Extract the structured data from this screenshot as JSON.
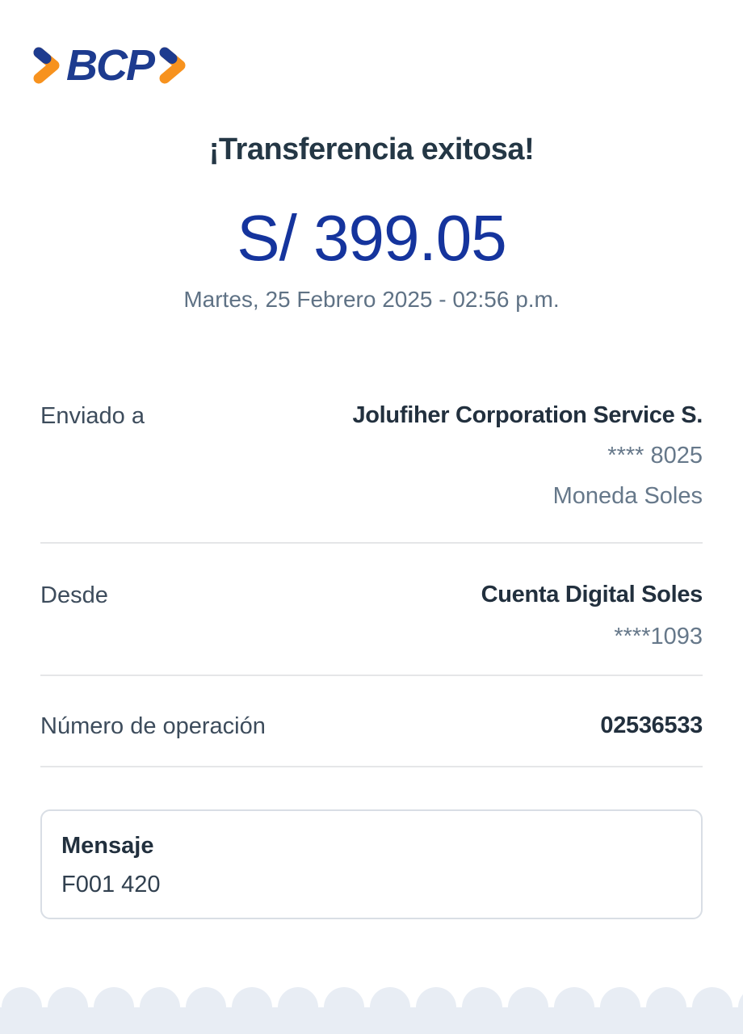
{
  "logo": {
    "text": "BCP",
    "blue": "#1d3b8f",
    "orange": "#f7921e"
  },
  "header": {
    "title": "¡Transferencia exitosa!",
    "amount": "S/ 399.05",
    "datetime": "Martes, 25 Febrero 2025 - 02:56 p.m."
  },
  "details": {
    "rows": [
      {
        "label": "Enviado a",
        "value": "Jolufiher Corporation Service S.",
        "account": "**** 8025",
        "currency": "Moneda Soles"
      },
      {
        "label": "Desde",
        "value": "Cuenta Digital Soles",
        "account": "****1093"
      },
      {
        "label": "Número de operación",
        "value": "02536533"
      }
    ]
  },
  "message": {
    "label": "Mensaje",
    "value": "F001 420"
  },
  "colors": {
    "amount_blue": "#15349d",
    "title_navy": "#243745",
    "label_slate": "#3d4c5c",
    "value_dark": "#22303e",
    "muted_gray": "#66788a",
    "divider": "#e5e6e8",
    "message_border": "#d9dee5",
    "scallop": "#e8edf4"
  },
  "footer": {
    "scallop_count": 17
  }
}
